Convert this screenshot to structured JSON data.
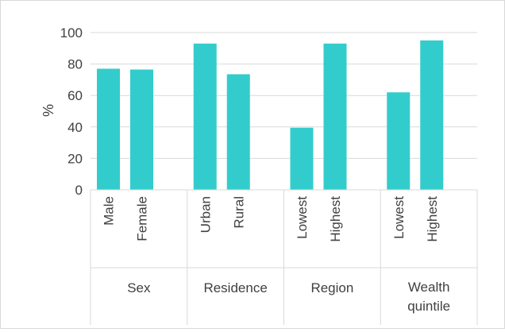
{
  "chart_data": {
    "type": "bar",
    "ylabel": "%",
    "ylim": [
      0,
      100
    ],
    "yticks": [
      0,
      20,
      40,
      60,
      80,
      100
    ],
    "grid": true,
    "bar_color": "#33cccc",
    "groups": [
      {
        "label": "Sex",
        "categories": [
          {
            "label": "Male",
            "value": 77
          },
          {
            "label": "Female",
            "value": 76.5
          }
        ]
      },
      {
        "label": "Residence",
        "categories": [
          {
            "label": "Urban",
            "value": 93
          },
          {
            "label": "Rural",
            "value": 73.5
          }
        ]
      },
      {
        "label": "Region",
        "categories": [
          {
            "label": "Lowest",
            "value": 39.5
          },
          {
            "label": "Highest",
            "value": 93
          }
        ]
      },
      {
        "label": "Wealth quintile",
        "label_lines": [
          "Wealth",
          "quintile"
        ],
        "categories": [
          {
            "label": "Lowest",
            "value": 62
          },
          {
            "label": "Highest",
            "value": 95
          }
        ]
      }
    ]
  }
}
